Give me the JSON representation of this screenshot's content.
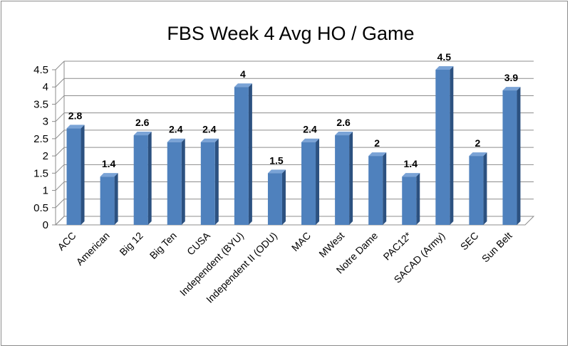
{
  "chart_data": {
    "type": "bar",
    "title": "FBS Week 4 Avg HO / Game",
    "xlabel": "",
    "ylabel": "",
    "ylim": [
      0,
      4.5
    ],
    "yticks": [
      "0",
      "0.5",
      "1",
      "1.5",
      "2",
      "2.5",
      "3",
      "3.5",
      "4",
      "4.5"
    ],
    "grid": true,
    "legend": "none",
    "categories": [
      "ACC",
      "American",
      "Big 12",
      "Big Ten",
      "CUSA",
      "Independent (BYU)",
      "Independent II (ODU)",
      "MAC",
      "MWest",
      "Notre Dame",
      "PAC12*",
      "SACAD (Army)",
      "SEC",
      "Sun Belt"
    ],
    "values": [
      2.8,
      1.4,
      2.6,
      2.4,
      2.4,
      4,
      1.5,
      2.4,
      2.6,
      2,
      1.4,
      4.5,
      2,
      3.9
    ],
    "value_labels": [
      "2.8",
      "1.4",
      "2.6",
      "2.4",
      "2.4",
      "4",
      "1.5",
      "2.4",
      "2.6",
      "2",
      "1.4",
      "4.5",
      "2",
      "3.9"
    ],
    "colors": {
      "bar_front": "#4f81bd",
      "bar_side": "#2c5180",
      "bar_top": "#7aa3d6",
      "grid": "#8c8c8c",
      "wall": "#ffffff"
    }
  }
}
